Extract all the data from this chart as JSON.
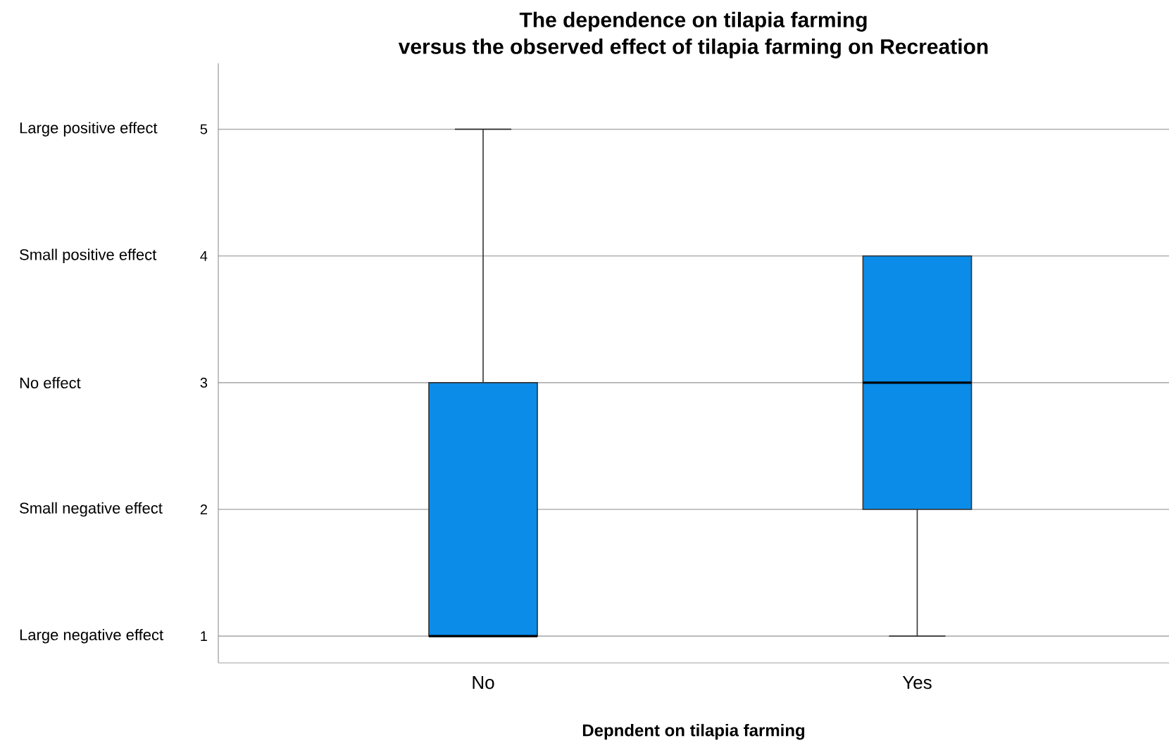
{
  "chart_data": {
    "type": "box",
    "title": "The dependence on tilapia farming",
    "subtitle": "versus the observed effect of tilapia farming on Recreation",
    "xlabel": "Depndent on tilapia farming",
    "categories": [
      "No",
      "Yes"
    ],
    "color": "#0b8ce9",
    "boxes": [
      {
        "low": 1,
        "q1": 1,
        "median": 1,
        "q3": 3,
        "high": 5
      },
      {
        "low": 1,
        "q1": 2,
        "median": 3,
        "q3": 4,
        "high": 4
      }
    ],
    "ylim": [
      0.79,
      5.52
    ],
    "yticks": [
      1,
      2,
      3,
      4,
      5
    ],
    "grid": "y",
    "annotations": [
      "Large negative effect",
      "Small negative effect",
      "No effect",
      "Small positive effect",
      "Large positive effect"
    ]
  }
}
